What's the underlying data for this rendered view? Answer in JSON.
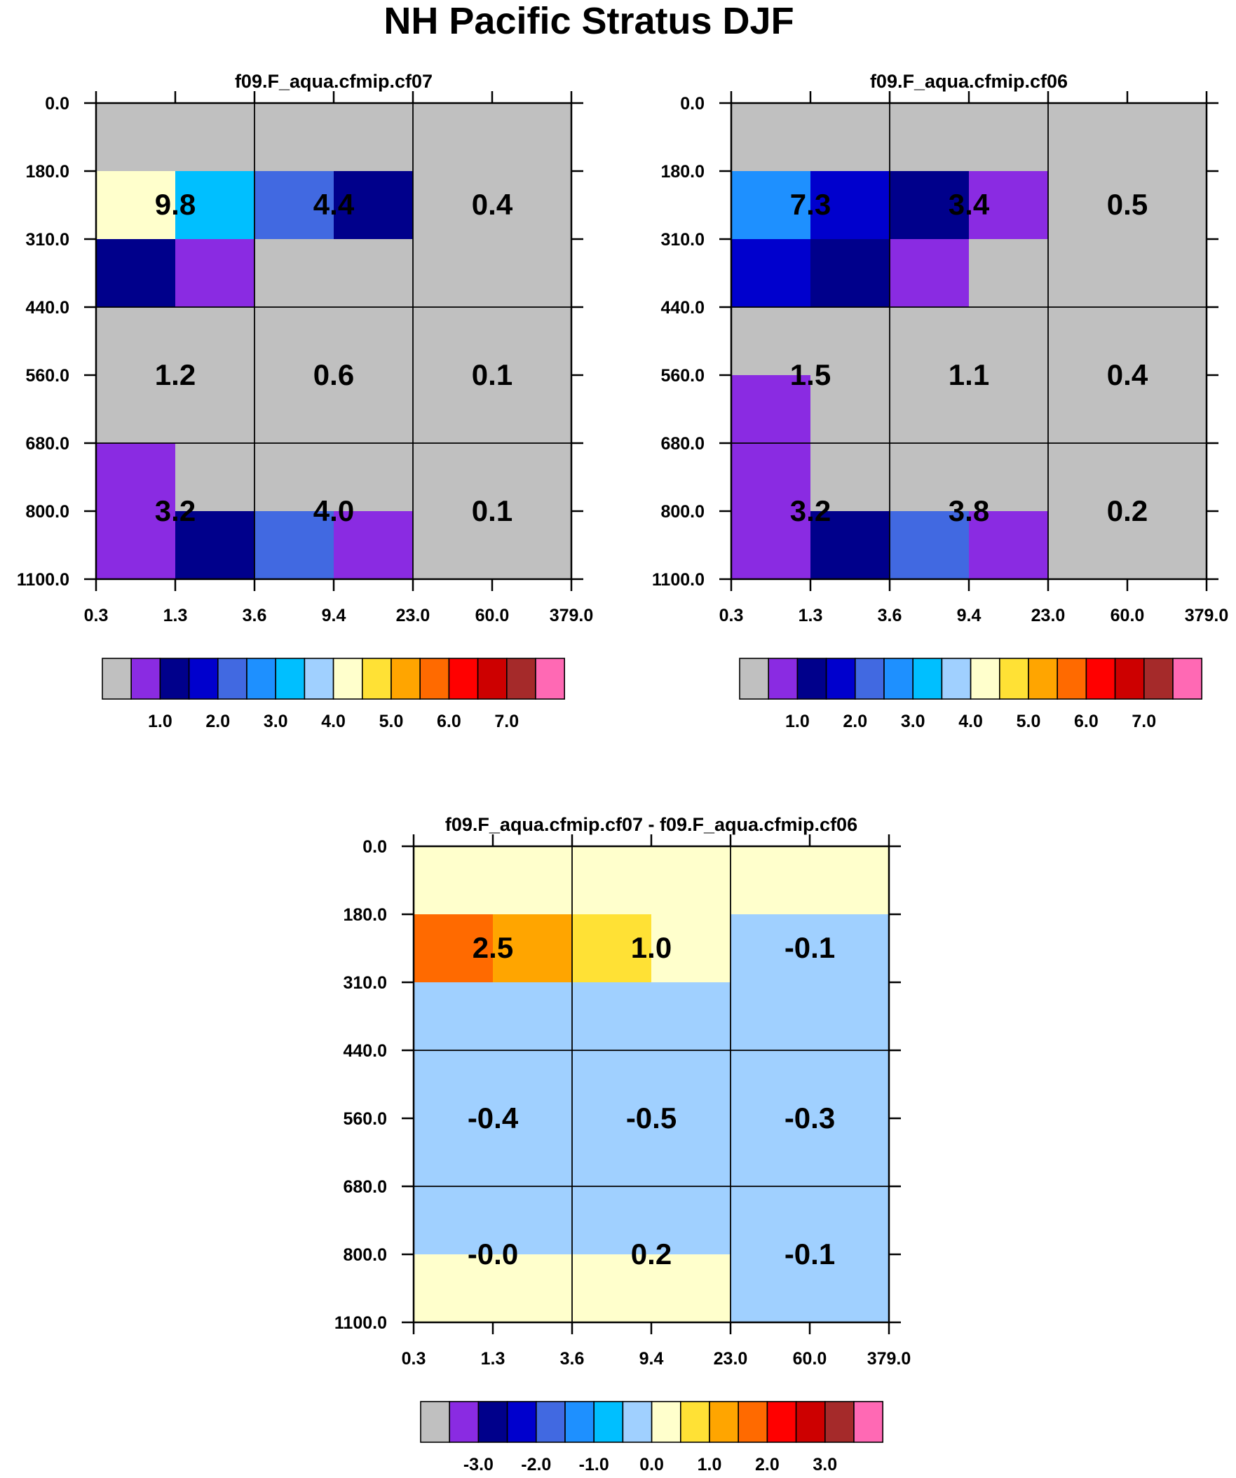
{
  "title": "NH Pacific Stratus DJF",
  "colors": {
    "abs_scale": [
      "#c0c0c0",
      "#8a2be2",
      "#00008b",
      "#0000cd",
      "#4169e1",
      "#1e90ff",
      "#00bfff",
      "#a0d0ff",
      "#ffffcc",
      "#ffe135",
      "#ffa500",
      "#ff6a00",
      "#ff0000",
      "#cd0000",
      "#a52a2a",
      "#ff69b4"
    ],
    "diff_scale": [
      "#c0c0c0",
      "#8a2be2",
      "#00008b",
      "#0000cd",
      "#4169e1",
      "#1e90ff",
      "#00bfff",
      "#a0d0ff",
      "#ffffcc",
      "#ffe135",
      "#ffa500",
      "#ff6a00",
      "#ff0000",
      "#cd0000",
      "#a52a2a",
      "#ff69b4"
    ]
  },
  "chart_data": [
    {
      "type": "heatmap",
      "title": "f09.F_aqua.cfmip.cf07",
      "x_tick_labels": [
        "0.3",
        "1.3",
        "3.6",
        "9.4",
        "23.0",
        "60.0",
        "379.0"
      ],
      "y_tick_labels": [
        "0.0",
        "180.0",
        "310.0",
        "440.0",
        "560.0",
        "680.0",
        "800.0",
        "1100.0"
      ],
      "cells": [
        [
          0,
          0,
          0,
          0,
          0,
          0
        ],
        [
          8,
          6,
          4,
          2,
          0,
          0
        ],
        [
          2,
          1,
          0,
          0,
          0,
          0
        ],
        [
          0,
          0,
          0,
          0,
          0,
          0
        ],
        [
          0,
          0,
          0,
          0,
          0,
          0
        ],
        [
          1,
          0,
          0,
          0,
          0,
          0
        ],
        [
          1,
          2,
          4,
          1,
          0,
          0
        ]
      ],
      "labels": [
        {
          "row": 0,
          "col": 0,
          "text": "9.8"
        },
        {
          "row": 0,
          "col": 1,
          "text": "4.4"
        },
        {
          "row": 0,
          "col": 2,
          "text": "0.4"
        },
        {
          "row": 1,
          "col": 0,
          "text": "1.2"
        },
        {
          "row": 1,
          "col": 1,
          "text": "0.6"
        },
        {
          "row": 1,
          "col": 2,
          "text": "0.1"
        },
        {
          "row": 2,
          "col": 0,
          "text": "3.2"
        },
        {
          "row": 2,
          "col": 1,
          "text": "4.0"
        },
        {
          "row": 2,
          "col": 2,
          "text": "0.1"
        }
      ],
      "colorbar_labels": [
        "1.0",
        "2.0",
        "3.0",
        "4.0",
        "5.0",
        "6.0",
        "7.0"
      ]
    },
    {
      "type": "heatmap",
      "title": "f09.F_aqua.cfmip.cf06",
      "x_tick_labels": [
        "0.3",
        "1.3",
        "3.6",
        "9.4",
        "23.0",
        "60.0",
        "379.0"
      ],
      "y_tick_labels": [
        "0.0",
        "180.0",
        "310.0",
        "440.0",
        "560.0",
        "680.0",
        "800.0",
        "1100.0"
      ],
      "cells": [
        [
          0,
          0,
          0,
          0,
          0,
          0
        ],
        [
          5,
          3,
          2,
          1,
          0,
          0
        ],
        [
          3,
          2,
          1,
          0,
          0,
          0
        ],
        [
          0,
          0,
          0,
          0,
          0,
          0
        ],
        [
          1,
          0,
          0,
          0,
          0,
          0
        ],
        [
          1,
          0,
          0,
          0,
          0,
          0
        ],
        [
          1,
          2,
          4,
          1,
          0,
          0
        ]
      ],
      "labels": [
        {
          "row": 0,
          "col": 0,
          "text": "7.3"
        },
        {
          "row": 0,
          "col": 1,
          "text": "3.4"
        },
        {
          "row": 0,
          "col": 2,
          "text": "0.5"
        },
        {
          "row": 1,
          "col": 0,
          "text": "1.5"
        },
        {
          "row": 1,
          "col": 1,
          "text": "1.1"
        },
        {
          "row": 1,
          "col": 2,
          "text": "0.4"
        },
        {
          "row": 2,
          "col": 0,
          "text": "3.2"
        },
        {
          "row": 2,
          "col": 1,
          "text": "3.8"
        },
        {
          "row": 2,
          "col": 2,
          "text": "0.2"
        }
      ],
      "colorbar_labels": [
        "1.0",
        "2.0",
        "3.0",
        "4.0",
        "5.0",
        "6.0",
        "7.0"
      ]
    },
    {
      "type": "heatmap",
      "title": "f09.F_aqua.cfmip.cf07 - f09.F_aqua.cfmip.cf06",
      "x_tick_labels": [
        "0.3",
        "1.3",
        "3.6",
        "9.4",
        "23.0",
        "60.0",
        "379.0"
      ],
      "y_tick_labels": [
        "0.0",
        "180.0",
        "310.0",
        "440.0",
        "560.0",
        "680.0",
        "800.0",
        "1100.0"
      ],
      "cells": [
        [
          8,
          8,
          8,
          8,
          8,
          8
        ],
        [
          11,
          10,
          9,
          8,
          7,
          7
        ],
        [
          7,
          7,
          7,
          7,
          7,
          7
        ],
        [
          7,
          7,
          7,
          7,
          7,
          7
        ],
        [
          7,
          7,
          7,
          7,
          7,
          7
        ],
        [
          7,
          7,
          7,
          7,
          7,
          7
        ],
        [
          8,
          8,
          8,
          8,
          7,
          7
        ]
      ],
      "labels": [
        {
          "row": 0,
          "col": 0,
          "text": "2.5"
        },
        {
          "row": 0,
          "col": 1,
          "text": "1.0"
        },
        {
          "row": 0,
          "col": 2,
          "text": "-0.1"
        },
        {
          "row": 1,
          "col": 0,
          "text": "-0.4"
        },
        {
          "row": 1,
          "col": 1,
          "text": "-0.5"
        },
        {
          "row": 1,
          "col": 2,
          "text": "-0.3"
        },
        {
          "row": 2,
          "col": 0,
          "text": "-0.0"
        },
        {
          "row": 2,
          "col": 1,
          "text": "0.2"
        },
        {
          "row": 2,
          "col": 2,
          "text": "-0.1"
        }
      ],
      "colorbar_labels": [
        "-3.0",
        "-2.0",
        "-1.0",
        "0.0",
        "1.0",
        "2.0",
        "3.0"
      ]
    }
  ]
}
